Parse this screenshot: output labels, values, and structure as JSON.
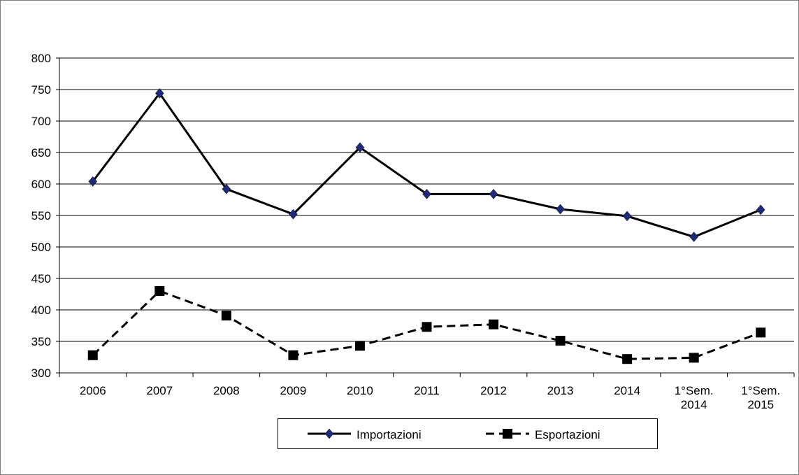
{
  "chart_data": {
    "type": "line",
    "categories": [
      "2006",
      "2007",
      "2008",
      "2009",
      "2010",
      "2011",
      "2012",
      "2013",
      "2014",
      "1°Sem.\n2014",
      "1°Sem.\n2015"
    ],
    "series": [
      {
        "name": "Importazioni",
        "color": "#000000",
        "marker_color": "#1f2a7a",
        "marker": "diamond",
        "dash": "solid",
        "values": [
          604,
          744,
          592,
          552,
          658,
          584,
          584,
          560,
          549,
          516,
          559
        ]
      },
      {
        "name": "Esportazioni",
        "color": "#000000",
        "marker_color": "#000000",
        "marker": "square",
        "dash": "dashed",
        "values": [
          328,
          430,
          391,
          328,
          343,
          373,
          377,
          351,
          322,
          324,
          364
        ]
      }
    ],
    "ylim": [
      300,
      800
    ],
    "yticks": [
      300,
      350,
      400,
      450,
      500,
      550,
      600,
      650,
      700,
      750,
      800
    ],
    "grid": true,
    "legend": "bottom"
  }
}
